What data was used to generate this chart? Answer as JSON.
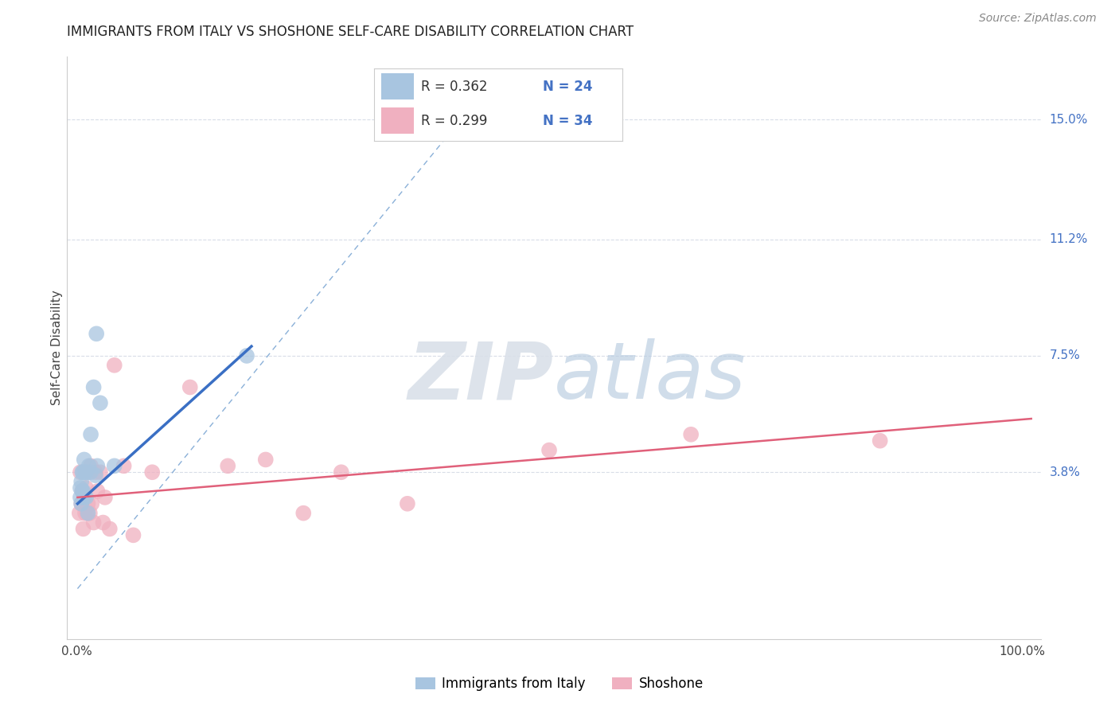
{
  "title": "IMMIGRANTS FROM ITALY VS SHOSHONE SELF-CARE DISABILITY CORRELATION CHART",
  "source": "Source: ZipAtlas.com",
  "ylabel": "Self-Care Disability",
  "ytick_labels": [
    "15.0%",
    "11.2%",
    "7.5%",
    "3.8%"
  ],
  "ytick_values": [
    0.15,
    0.112,
    0.075,
    0.038
  ],
  "xlim": [
    -0.01,
    1.02
  ],
  "ylim": [
    -0.015,
    0.17
  ],
  "blue_color": "#a8c5e0",
  "pink_color": "#f0b0c0",
  "blue_line_color": "#3a6fc4",
  "pink_line_color": "#e0607a",
  "dashed_line_color": "#8ab0d8",
  "italy_scatter_x": [
    0.004,
    0.004,
    0.005,
    0.005,
    0.006,
    0.006,
    0.007,
    0.007,
    0.008,
    0.008,
    0.009,
    0.01,
    0.01,
    0.012,
    0.013,
    0.015,
    0.015,
    0.018,
    0.02,
    0.021,
    0.022,
    0.025,
    0.04,
    0.18
  ],
  "italy_scatter_y": [
    0.033,
    0.03,
    0.028,
    0.035,
    0.032,
    0.038,
    0.038,
    0.032,
    0.042,
    0.03,
    0.038,
    0.038,
    0.03,
    0.025,
    0.04,
    0.05,
    0.038,
    0.065,
    0.037,
    0.082,
    0.04,
    0.06,
    0.04,
    0.075
  ],
  "shoshone_scatter_x": [
    0.003,
    0.004,
    0.005,
    0.006,
    0.007,
    0.008,
    0.009,
    0.01,
    0.011,
    0.012,
    0.013,
    0.014,
    0.015,
    0.016,
    0.018,
    0.02,
    0.022,
    0.025,
    0.028,
    0.03,
    0.035,
    0.04,
    0.05,
    0.06,
    0.08,
    0.12,
    0.16,
    0.2,
    0.24,
    0.28,
    0.35,
    0.5,
    0.65,
    0.85
  ],
  "shoshone_scatter_y": [
    0.025,
    0.038,
    0.028,
    0.032,
    0.02,
    0.03,
    0.025,
    0.033,
    0.025,
    0.028,
    0.038,
    0.025,
    0.04,
    0.028,
    0.022,
    0.038,
    0.032,
    0.038,
    0.022,
    0.03,
    0.02,
    0.072,
    0.04,
    0.018,
    0.038,
    0.065,
    0.04,
    0.042,
    0.025,
    0.038,
    0.028,
    0.045,
    0.05,
    0.048
  ],
  "italy_line_x": [
    0.001,
    0.185
  ],
  "italy_line_y": [
    0.028,
    0.078
  ],
  "shoshone_line_x": [
    0.001,
    1.01
  ],
  "shoshone_line_y": [
    0.03,
    0.055
  ],
  "diag_line_x": [
    0.001,
    0.42
  ],
  "diag_line_y": [
    0.001,
    0.155
  ],
  "watermark_zip": "ZIP",
  "watermark_atlas": "atlas",
  "background_color": "#ffffff",
  "grid_color": "#d8dde8",
  "legend_r1": "R = 0.362",
  "legend_n1": "N = 24",
  "legend_r2": "R = 0.299",
  "legend_n2": "N = 34",
  "legend_label1": "Immigrants from Italy",
  "legend_label2": "Shoshone"
}
